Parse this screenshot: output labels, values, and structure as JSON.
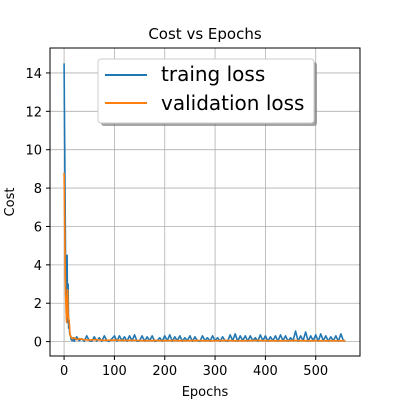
{
  "chart_data": {
    "type": "line",
    "title": "Cost vs Epochs",
    "xlabel": "Epochs",
    "ylabel": "Cost",
    "xlim": [
      -28,
      588
    ],
    "ylim": [
      -0.75,
      15.3
    ],
    "xticks": [
      0,
      100,
      200,
      300,
      400,
      500
    ],
    "yticks": [
      0,
      2,
      4,
      6,
      8,
      10,
      12,
      14
    ],
    "grid": true,
    "legend_position": "top-right",
    "series": [
      {
        "name": "traing loss",
        "color": "#1f77b4",
        "x": [
          0,
          1,
          2,
          3,
          4,
          5,
          6,
          7,
          8,
          9,
          10,
          11,
          12,
          13,
          14,
          15,
          16,
          18,
          20,
          25,
          30,
          35,
          40,
          45,
          50,
          55,
          60,
          65,
          70,
          75,
          80,
          85,
          90,
          95,
          100,
          105,
          110,
          115,
          120,
          125,
          130,
          135,
          140,
          145,
          150,
          155,
          160,
          165,
          170,
          175,
          180,
          185,
          190,
          195,
          200,
          205,
          210,
          215,
          220,
          225,
          230,
          235,
          240,
          245,
          250,
          255,
          260,
          265,
          270,
          275,
          280,
          285,
          290,
          295,
          300,
          305,
          310,
          315,
          320,
          325,
          330,
          335,
          340,
          345,
          350,
          355,
          360,
          365,
          370,
          375,
          380,
          385,
          390,
          395,
          400,
          405,
          410,
          415,
          420,
          425,
          430,
          435,
          440,
          445,
          450,
          455,
          460,
          465,
          470,
          475,
          480,
          485,
          490,
          495,
          500,
          505,
          510,
          515,
          520,
          525,
          530,
          535,
          540,
          545,
          550,
          555,
          559
        ],
        "values": [
          14.5,
          11.0,
          7.5,
          4.0,
          2.2,
          1.2,
          4.5,
          1.0,
          3.0,
          0.7,
          1.1,
          0.4,
          0.35,
          0.3,
          0.1,
          0.2,
          0.05,
          0.2,
          0.02,
          0.25,
          0.05,
          0.15,
          0.02,
          0.3,
          0.05,
          0.02,
          0.25,
          0.03,
          0.2,
          0.02,
          0.3,
          0.05,
          0.02,
          0.15,
          0.3,
          0.02,
          0.3,
          0.05,
          0.25,
          0.02,
          0.3,
          0.05,
          0.35,
          0.02,
          0.05,
          0.3,
          0.02,
          0.25,
          0.05,
          0.3,
          0.02,
          0.05,
          0.2,
          0.02,
          0.3,
          0.05,
          0.35,
          0.02,
          0.25,
          0.05,
          0.3,
          0.02,
          0.2,
          0.05,
          0.3,
          0.02,
          0.25,
          0.05,
          0.02,
          0.3,
          0.05,
          0.2,
          0.02,
          0.3,
          0.05,
          0.2,
          0.02,
          0.25,
          0.05,
          0.02,
          0.35,
          0.05,
          0.4,
          0.02,
          0.3,
          0.05,
          0.3,
          0.02,
          0.3,
          0.05,
          0.2,
          0.02,
          0.35,
          0.05,
          0.3,
          0.02,
          0.25,
          0.05,
          0.3,
          0.02,
          0.35,
          0.05,
          0.3,
          0.02,
          0.2,
          0.05,
          0.55,
          0.02,
          0.3,
          0.05,
          0.5,
          0.02,
          0.3,
          0.05,
          0.35,
          0.02,
          0.4,
          0.05,
          0.3,
          0.02,
          0.25,
          0.05,
          0.3,
          0.02,
          0.4,
          0.05,
          0.05
        ]
      },
      {
        "name": "validation loss",
        "color": "#ff7f0e",
        "x": [
          0,
          1,
          2,
          3,
          4,
          5,
          6,
          7,
          8,
          9,
          10,
          12,
          14,
          16,
          20,
          25,
          30,
          40,
          50,
          60,
          80,
          100,
          120,
          140,
          160,
          180,
          200,
          220,
          240,
          260,
          280,
          300,
          320,
          340,
          360,
          380,
          400,
          420,
          440,
          460,
          480,
          500,
          520,
          540,
          559
        ],
        "values": [
          8.8,
          6.5,
          4.2,
          2.5,
          1.6,
          1.0,
          2.0,
          2.7,
          1.4,
          1.2,
          1.1,
          0.3,
          0.25,
          0.15,
          0.2,
          0.1,
          0.15,
          0.1,
          0.08,
          0.1,
          0.07,
          0.08,
          0.06,
          0.07,
          0.05,
          0.06,
          0.05,
          0.06,
          0.05,
          0.06,
          0.05,
          0.05,
          0.06,
          0.05,
          0.05,
          0.06,
          0.05,
          0.05,
          0.05,
          0.06,
          0.05,
          0.05,
          0.05,
          0.05,
          0.05
        ]
      }
    ]
  }
}
